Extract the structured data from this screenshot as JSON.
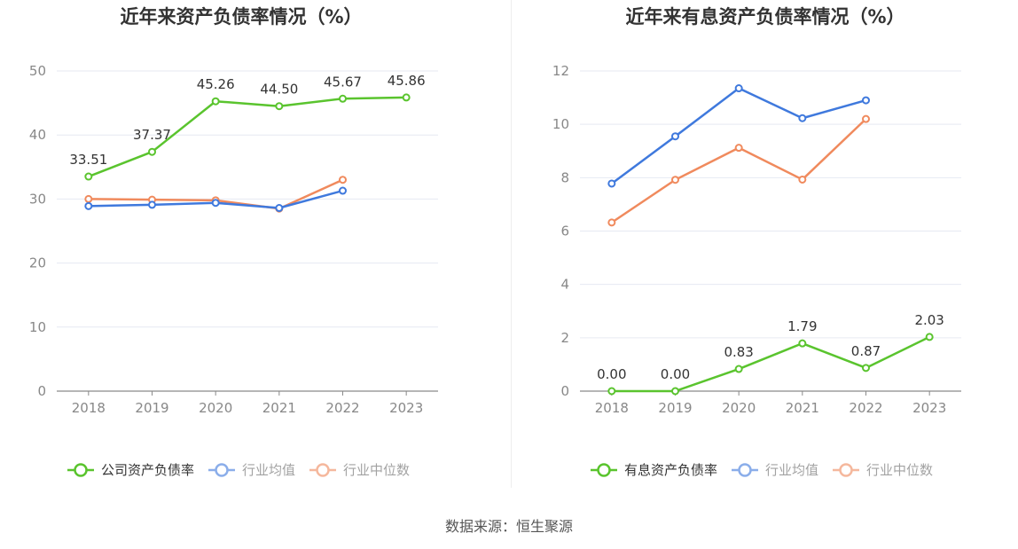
{
  "source_label": "数据来源：恒生聚源",
  "chart_data": [
    {
      "type": "line",
      "title": "近年来资产负债率情况（%）",
      "x": [
        "2018",
        "2019",
        "2020",
        "2021",
        "2022",
        "2023"
      ],
      "ylim": [
        0,
        50
      ],
      "yticks": [
        0,
        10,
        20,
        30,
        40,
        50
      ],
      "grid": true,
      "legend": "bottom",
      "series": [
        {
          "name": "公司资产负债率",
          "color": "#5ac42e",
          "values": [
            33.51,
            37.37,
            45.26,
            44.5,
            45.67,
            45.86
          ],
          "labels": [
            "33.51",
            "37.37",
            "45.26",
            "44.50",
            "45.67",
            "45.86"
          ]
        },
        {
          "name": "行业均值",
          "color": "#3f79dd",
          "values": [
            28.9,
            29.1,
            29.4,
            28.6,
            31.3,
            null
          ]
        },
        {
          "name": "行业中位数",
          "color": "#f08a5d",
          "values": [
            30.0,
            29.9,
            29.8,
            28.5,
            33.0,
            null
          ]
        }
      ]
    },
    {
      "type": "line",
      "title": "近年来有息资产负债率情况（%）",
      "x": [
        "2018",
        "2019",
        "2020",
        "2021",
        "2022",
        "2023"
      ],
      "ylim": [
        0,
        12
      ],
      "yticks": [
        0,
        2,
        4,
        6,
        8,
        10,
        12
      ],
      "grid": true,
      "legend": "bottom",
      "series": [
        {
          "name": "有息资产负债率",
          "color": "#5ac42e",
          "values": [
            0.0,
            0.0,
            0.83,
            1.79,
            0.87,
            2.03
          ],
          "labels": [
            "0.00",
            "0.00",
            "0.83",
            "1.79",
            "0.87",
            "2.03"
          ]
        },
        {
          "name": "行业均值",
          "color": "#3f79dd",
          "values": [
            7.78,
            9.55,
            11.35,
            10.23,
            10.9,
            null
          ]
        },
        {
          "name": "行业中位数",
          "color": "#f08a5d",
          "values": [
            6.32,
            7.92,
            9.12,
            7.93,
            10.2,
            null
          ]
        }
      ]
    }
  ]
}
